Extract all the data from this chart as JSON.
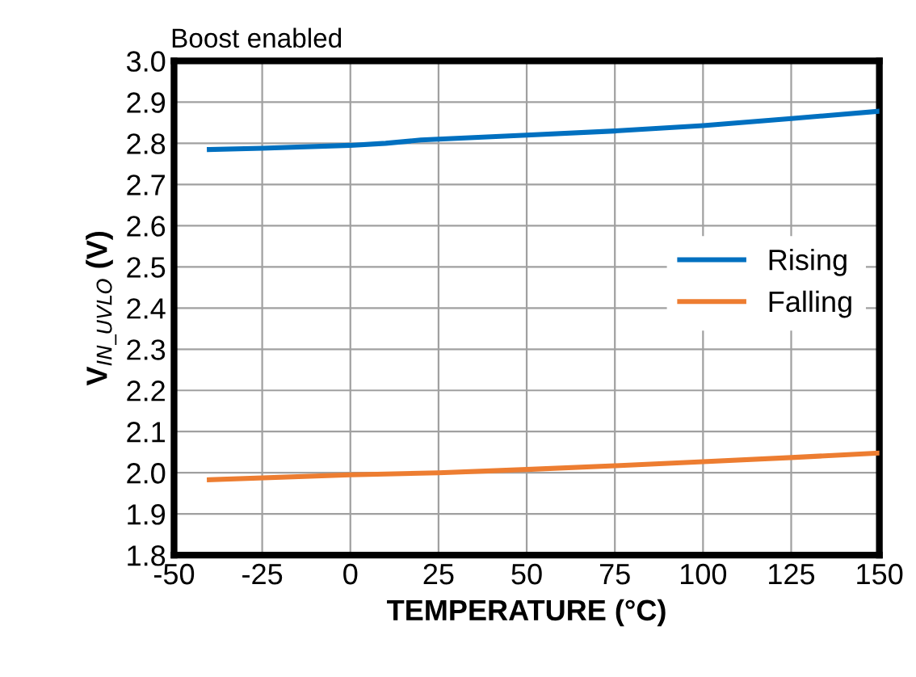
{
  "chart_data": {
    "type": "line",
    "title": "Boost enabled",
    "xlabel": "TEMPERATURE (°C)",
    "ylabel": "V$_{IN_UVLO}$ (V)",
    "xlim": [
      -50,
      150
    ],
    "xticks": [
      -50,
      -25,
      0,
      25,
      50,
      75,
      100,
      125,
      150
    ],
    "ylim": [
      1.8,
      3.0
    ],
    "yticks": [
      {
        "value": 1.8,
        "label": "1.8"
      },
      {
        "value": 1.9,
        "label": "1.9"
      },
      {
        "value": 2.0,
        "label": "2.0"
      },
      {
        "value": 2.1,
        "label": "2.1"
      },
      {
        "value": 2.2,
        "label": "2.2"
      },
      {
        "value": 2.3,
        "label": "2.3"
      },
      {
        "value": 2.4,
        "label": "2.4"
      },
      {
        "value": 2.5,
        "label": "2.5"
      },
      {
        "value": 2.6,
        "label": "2.6"
      },
      {
        "value": 2.7,
        "label": "2.7"
      },
      {
        "value": 2.8,
        "label": "2.8"
      },
      {
        "value": 2.9,
        "label": "2.9"
      },
      {
        "value": 3.0,
        "label": "3.0"
      }
    ],
    "grid": true,
    "legend": "right",
    "marker": "none",
    "line_style": "solid",
    "series": [
      {
        "name": "Rising",
        "color": "#0070c0",
        "x": [
          -40,
          -25,
          0,
          10,
          20,
          50,
          75,
          100,
          125,
          150
        ],
        "values": [
          2.785,
          2.788,
          2.795,
          2.8,
          2.808,
          2.82,
          2.83,
          2.843,
          2.86,
          2.878
        ]
      },
      {
        "name": "Falling",
        "color": "#ed7d31",
        "x": [
          -40,
          0,
          25,
          50,
          75,
          100,
          125,
          150
        ],
        "values": [
          1.983,
          1.995,
          2.0,
          2.008,
          2.017,
          2.027,
          2.037,
          2.048
        ]
      }
    ]
  }
}
